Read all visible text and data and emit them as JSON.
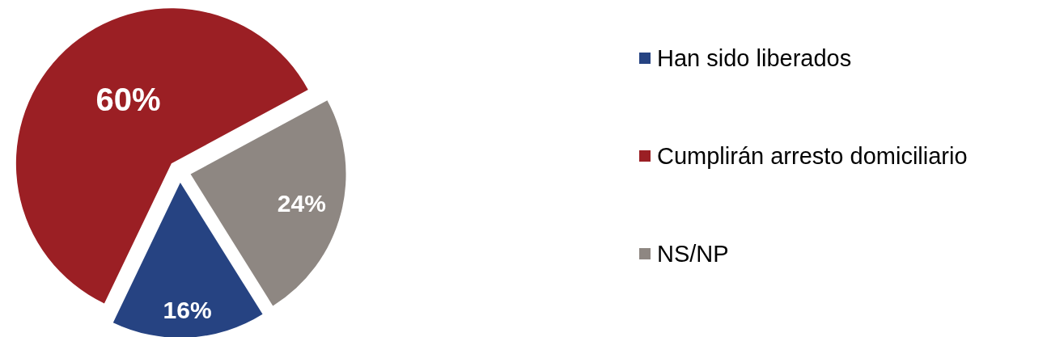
{
  "chart_data": {
    "type": "pie",
    "categories": [
      "Han sido liberados",
      "Cumplirán arresto domiciliario",
      "NS/NP"
    ],
    "values": [
      16,
      60,
      24
    ],
    "value_labels": [
      "16%",
      "60%",
      "24%"
    ],
    "colors": [
      "#264382",
      "#9b1f24",
      "#8e8782"
    ],
    "legend": "right"
  }
}
